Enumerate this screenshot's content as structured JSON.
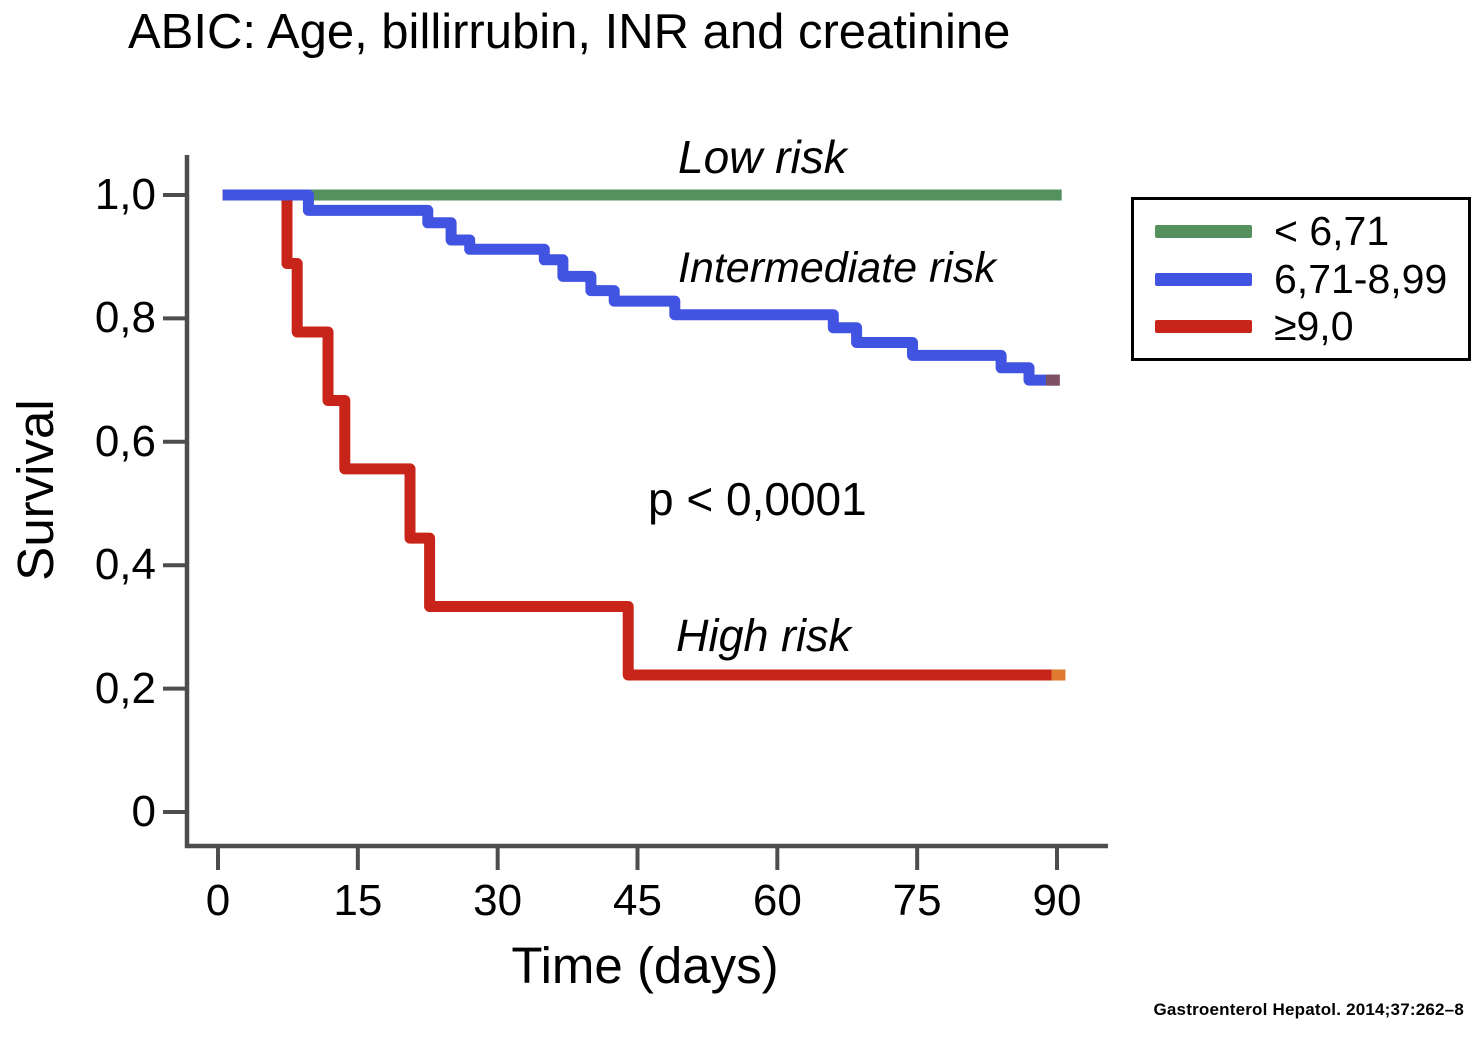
{
  "citation": "Gastroenterol Hepatol. 2014;37:262–8",
  "chart_data": {
    "type": "line",
    "subtype": "kaplan_meier_step_curves",
    "title": "ABIC: Age, billirrubin, INR and creatinine",
    "xlabel": "Time (days)",
    "ylabel": "Survival",
    "xlim": [
      0,
      90
    ],
    "ylim": [
      0,
      1.0
    ],
    "grid": false,
    "legend_position": "outside-upper-right",
    "x_ticks": [
      {
        "value": 0,
        "label": "0"
      },
      {
        "value": 15,
        "label": "15"
      },
      {
        "value": 30,
        "label": "30"
      },
      {
        "value": 45,
        "label": "45"
      },
      {
        "value": 60,
        "label": "60"
      },
      {
        "value": 75,
        "label": "75"
      },
      {
        "value": 90,
        "label": "90"
      }
    ],
    "y_ticks": [
      {
        "value": 1.0,
        "label": "1,0"
      },
      {
        "value": 0.8,
        "label": "0,8"
      },
      {
        "value": 0.6,
        "label": "0,6"
      },
      {
        "value": 0.4,
        "label": "0,4"
      },
      {
        "value": 0.2,
        "label": "0,2"
      },
      {
        "value": 0,
        "label": "0"
      }
    ],
    "axis_color": "#4d4d4d",
    "series": [
      {
        "name": "Low risk",
        "legend_label": "< 6,71",
        "color": "#55915f",
        "steps": [
          [
            0.5,
            1.0
          ]
        ],
        "end_day": 90.5
      },
      {
        "name": "Intermediate risk",
        "legend_label": "6,71-8,99",
        "color": "#4153e1",
        "steps": [
          [
            0.5,
            1.0
          ],
          [
            9.7,
            0.975
          ],
          [
            22.5,
            0.955
          ],
          [
            25,
            0.927
          ],
          [
            27,
            0.912
          ],
          [
            35,
            0.895
          ],
          [
            37,
            0.868
          ],
          [
            40,
            0.845
          ],
          [
            42.5,
            0.828
          ],
          [
            49,
            0.806
          ],
          [
            66,
            0.785
          ],
          [
            68.5,
            0.761
          ],
          [
            74.5,
            0.74
          ],
          [
            84,
            0.72
          ],
          [
            87,
            0.7
          ]
        ],
        "end_day": 90.2,
        "end_cap_color": "#7d5064"
      },
      {
        "name": "High risk",
        "legend_label": "≥9,0",
        "color": "#c9241a",
        "steps": [
          [
            0.5,
            1.0
          ],
          [
            7.4,
            0.889
          ],
          [
            8.5,
            0.778
          ],
          [
            11.8,
            0.667
          ],
          [
            13.6,
            0.556
          ],
          [
            20.6,
            0.444
          ],
          [
            22.7,
            0.333
          ],
          [
            44,
            0.222
          ]
        ],
        "end_day": 90.8,
        "end_cap_color": "#e07a2e"
      }
    ],
    "annotations": {
      "low_risk": "Low risk",
      "intermediate_risk": "Intermediate risk",
      "high_risk": "High risk",
      "p_value": "p < 0,0001"
    }
  }
}
